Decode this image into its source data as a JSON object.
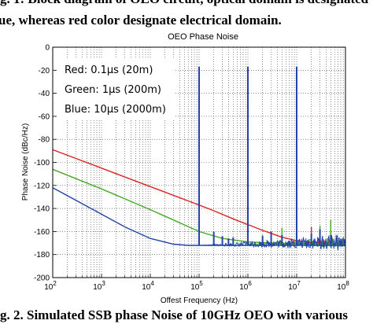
{
  "caption_top_line1": "g. 1: Block diagram of OEO circuit, optical domain is designated",
  "caption_top_line2": "ue, whereas red color designate electrical domain.",
  "caption_bottom": "g. 2. Simulated SSB phase Noise of 10GHz OEO with various",
  "chart_data": {
    "type": "line",
    "title": "OEO Phase Noise",
    "xlabel": "Offest Frequency (Hz)",
    "ylabel": "Phase Noise (dBc/Hz)",
    "xscale": "log",
    "xlim": [
      100,
      100000000
    ],
    "ylim": [
      -200,
      0
    ],
    "x_ticks": [
      {
        "value": 100,
        "base": "10",
        "exp": "2"
      },
      {
        "value": 1000,
        "base": "10",
        "exp": "3"
      },
      {
        "value": 10000,
        "base": "10",
        "exp": "4"
      },
      {
        "value": 100000,
        "base": "10",
        "exp": "5"
      },
      {
        "value": 1000000,
        "base": "10",
        "exp": "6"
      },
      {
        "value": 10000000,
        "base": "10",
        "exp": "7"
      },
      {
        "value": 100000000,
        "base": "10",
        "exp": "8"
      }
    ],
    "y_ticks": [
      0,
      -20,
      -40,
      -60,
      -80,
      -100,
      -120,
      -140,
      -160,
      -180,
      -200
    ],
    "grid": "dotted",
    "legend_placement": "top-left",
    "legend_entries": [
      "Red: 0.1μs (20m)",
      "Green: 1μs (200m)",
      "Blue: 10μs (2000m)"
    ],
    "series": [
      {
        "color": "#dd2222",
        "x": [
          100,
          1000,
          10000,
          100000,
          200000,
          500000,
          1000000,
          2000000,
          5000000,
          10000000,
          30000000,
          100000000
        ],
        "y": [
          -89,
          -105,
          -121,
          -137,
          -142,
          -149,
          -154,
          -159,
          -165,
          -168,
          -170,
          -171
        ],
        "spurs": [
          [
            10000000,
            -158
          ],
          [
            20000000,
            -156
          ],
          [
            50000000,
            -159
          ]
        ]
      },
      {
        "color": "#44aa22",
        "x": [
          100,
          1000,
          10000,
          30000,
          100000,
          300000,
          1000000,
          3000000,
          10000000,
          100000000
        ],
        "y": [
          -106,
          -123,
          -141,
          -150,
          -160,
          -166,
          -169,
          -170,
          -171,
          -171
        ],
        "spurs": [
          [
            1000000,
            -17
          ],
          [
            2000000,
            -163
          ],
          [
            5000000,
            -157
          ],
          [
            10000000,
            -18
          ],
          [
            30000000,
            -155
          ],
          [
            50000000,
            -150
          ]
        ]
      },
      {
        "color": "#2244aa",
        "x": [
          100,
          300,
          1000,
          3000,
          10000,
          30000,
          60000,
          100000,
          300000,
          1000000,
          100000000
        ],
        "y": [
          -122,
          -133,
          -145,
          -156,
          -166,
          -171,
          -172,
          -172,
          -172,
          -172,
          -172
        ],
        "spurs": [
          [
            100000,
            -17
          ],
          [
            200000,
            -160
          ],
          [
            300000,
            -164
          ],
          [
            400000,
            -166
          ],
          [
            500000,
            -165
          ],
          [
            1000000,
            -17
          ],
          [
            2000000,
            -164
          ],
          [
            3000000,
            -160
          ],
          [
            5000000,
            -163
          ],
          [
            10000000,
            -17
          ],
          [
            20000000,
            -162
          ],
          [
            30000000,
            -158
          ],
          [
            50000000,
            -163
          ]
        ]
      }
    ]
  }
}
